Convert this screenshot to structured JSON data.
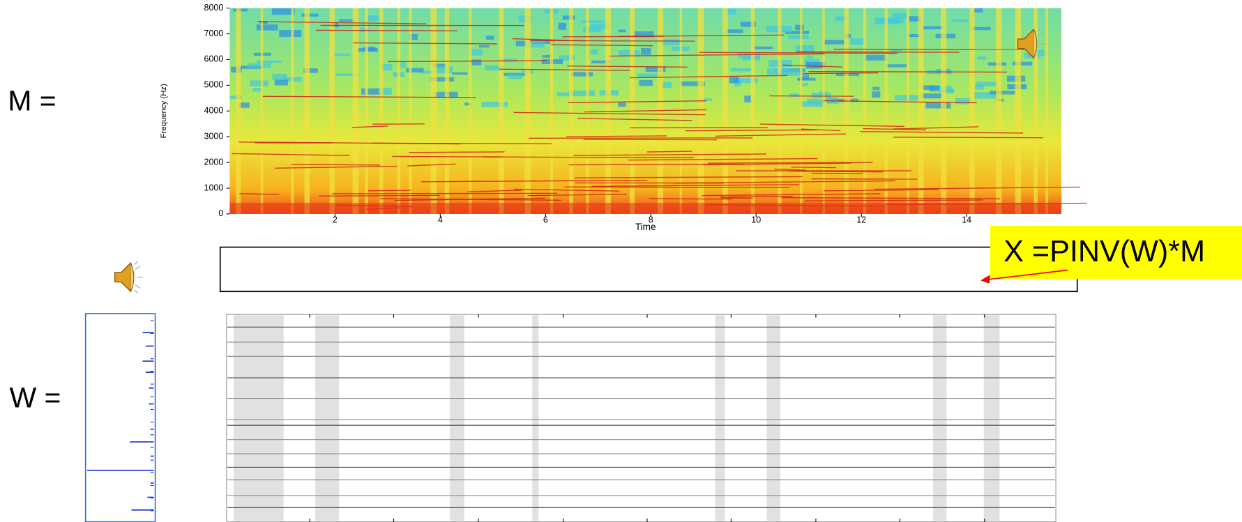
{
  "labels": {
    "m": "M =",
    "w": "W =",
    "formula": "X =PINV(W)*M"
  },
  "spectrogram": {
    "xlabel": "Time",
    "ylabel": "Frequency (Hz)",
    "xlim": [
      0,
      15.8
    ],
    "ylim": [
      0,
      8000
    ],
    "xticks": [
      2,
      4,
      6,
      8,
      10,
      12,
      14
    ],
    "yticks": [
      0,
      1000,
      2000,
      3000,
      4000,
      5000,
      6000,
      7000,
      8000
    ]
  }
}
